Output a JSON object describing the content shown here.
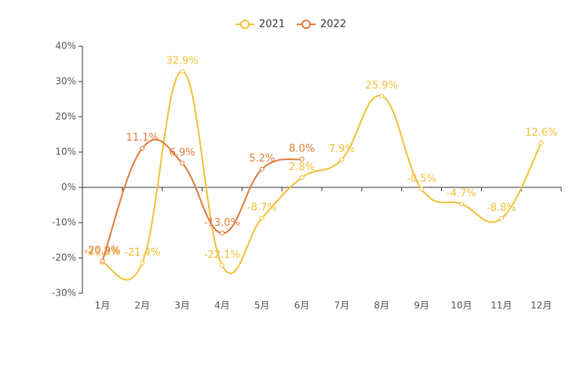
{
  "chart_data": {
    "type": "line",
    "categories": [
      "1月",
      "2月",
      "3月",
      "4月",
      "5月",
      "6月",
      "7月",
      "8月",
      "9月",
      "10月",
      "11月",
      "12月"
    ],
    "series": [
      {
        "name": "2021",
        "color": "#f2c037",
        "values": [
          -21.3,
          -21.4,
          32.9,
          -22.1,
          -8.7,
          2.8,
          7.9,
          25.9,
          -0.5,
          -4.7,
          -8.8,
          12.6
        ],
        "value_labels": [
          "-21.3%",
          "-21.4%",
          "32.9%",
          "-22.1%",
          "-8.7%",
          "2.8%",
          "7.9%",
          "25.9%",
          "-0.5%",
          "-4.7%",
          "-8.8%",
          "12.6%"
        ]
      },
      {
        "name": "2022",
        "color": "#e07b39",
        "values": [
          -20.9,
          11.1,
          6.9,
          -13.0,
          5.2,
          8.0,
          null,
          null,
          null,
          null,
          null,
          null
        ],
        "value_labels": [
          "-20.9%",
          "11.1%",
          "6.9%",
          "-13.0%",
          "5.2%",
          "8.0%",
          null,
          null,
          null,
          null,
          null,
          null
        ]
      }
    ],
    "ylim": [
      -30,
      40
    ],
    "yticks": [
      {
        "value": -30,
        "label": "-30%"
      },
      {
        "value": -20,
        "label": "-20%"
      },
      {
        "value": -10,
        "label": "-10%"
      },
      {
        "value": 0,
        "label": "0%"
      },
      {
        "value": 10,
        "label": "10%"
      },
      {
        "value": 20,
        "label": "20%"
      },
      {
        "value": 30,
        "label": "30%"
      },
      {
        "value": 40,
        "label": "40%"
      }
    ]
  }
}
